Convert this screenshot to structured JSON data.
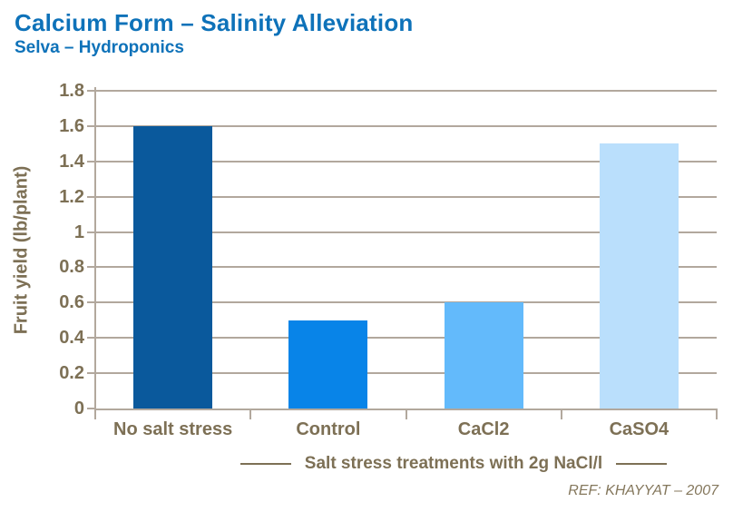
{
  "header": {
    "title": "Calcium Form – Salinity Alleviation",
    "subtitle": "Selva – Hydroponics"
  },
  "footer": {
    "ref": "REF: KHAYYAT – 2007"
  },
  "colors": {
    "title_blue": "#0E72B9",
    "axis_text": "#7D7055",
    "gridline": "#B2A89D",
    "bar_colors": [
      "#0A599C",
      "#0884E8",
      "#63BAFB",
      "#BADFFC"
    ]
  },
  "chart_data": {
    "type": "bar",
    "title": "Calcium Form – Salinity Alleviation",
    "subtitle": "Selva – Hydroponics",
    "categories": [
      "No salt stress",
      "Control",
      "CaCl2",
      "CaSO4"
    ],
    "values": [
      1.6,
      0.5,
      0.6,
      1.5
    ],
    "bar_colors": [
      "#0A599C",
      "#0884E8",
      "#63BAFB",
      "#BADFFC"
    ],
    "xlabel": "Salt stress treatments with 2g NaCl/l",
    "ylabel": "Fruit yield (lb/plant)",
    "ylim": [
      0,
      1.8
    ],
    "ytick_step": 0.2,
    "ytick_labels": [
      "0",
      "0.2",
      "0.4",
      "0.6",
      "0.8",
      "1",
      "1.2",
      "1.4",
      "1.6",
      "1.8"
    ],
    "grid": true,
    "legend": false
  }
}
